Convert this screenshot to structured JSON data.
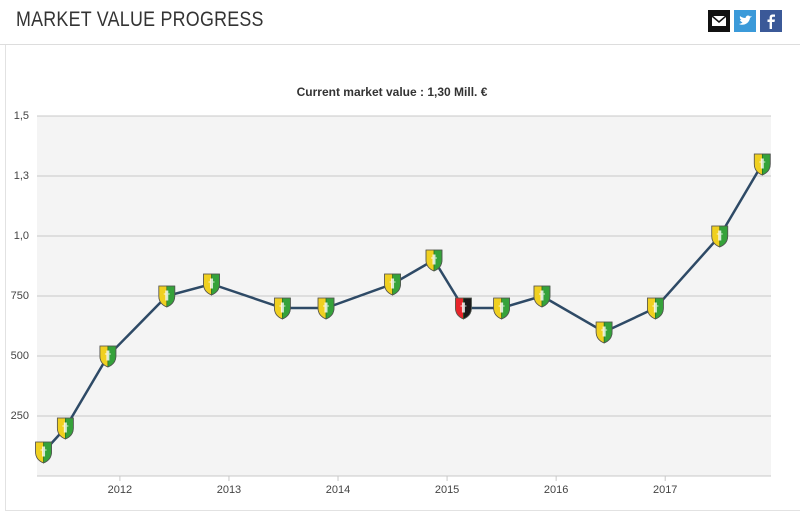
{
  "header": {
    "title": "MARKET VALUE PROGRESS"
  },
  "chart_data": {
    "type": "line",
    "subtitle": "Current market value : 1,30 Mill. €",
    "x": [
      2011.3,
      2011.5,
      2011.89,
      2012.43,
      2012.84,
      2013.49,
      2013.89,
      2014.5,
      2014.88,
      2015.15,
      2015.5,
      2015.87,
      2016.44,
      2016.91,
      2017.5,
      2017.89
    ],
    "values": [
      100,
      200,
      500,
      750,
      800,
      700,
      700,
      800,
      900,
      700,
      700,
      750,
      600,
      700,
      1000,
      1300
    ],
    "color": "#2e4a66",
    "marker_colors": [
      [
        "#f0d020",
        "#35a23a"
      ],
      [
        "#f0d020",
        "#35a23a"
      ],
      [
        "#f0d020",
        "#35a23a"
      ],
      [
        "#f0d020",
        "#35a23a"
      ],
      [
        "#f0d020",
        "#35a23a"
      ],
      [
        "#f0d020",
        "#35a23a"
      ],
      [
        "#f0d020",
        "#35a23a"
      ],
      [
        "#f0d020",
        "#35a23a"
      ],
      [
        "#f0d020",
        "#35a23a"
      ],
      [
        "#e8242a",
        "#1a1a1a"
      ],
      [
        "#f0d020",
        "#35a23a"
      ],
      [
        "#f0d020",
        "#35a23a"
      ],
      [
        "#f0d020",
        "#35a23a"
      ],
      [
        "#f0d020",
        "#35a23a"
      ],
      [
        "#f0d020",
        "#35a23a"
      ],
      [
        "#f0d020",
        "#35a23a"
      ]
    ],
    "xlim": [
      2011.24,
      2017.97
    ],
    "xticks": [
      2012,
      2013,
      2014,
      2015,
      2016,
      2017
    ],
    "ylim": [
      0,
      1500
    ],
    "yticks": [
      250,
      500,
      750,
      {
        "value": 1000,
        "label": "1,0"
      },
      {
        "value": 1250,
        "label": "1,3"
      },
      {
        "value": 1500,
        "label": "1,5"
      }
    ],
    "grid": true
  }
}
